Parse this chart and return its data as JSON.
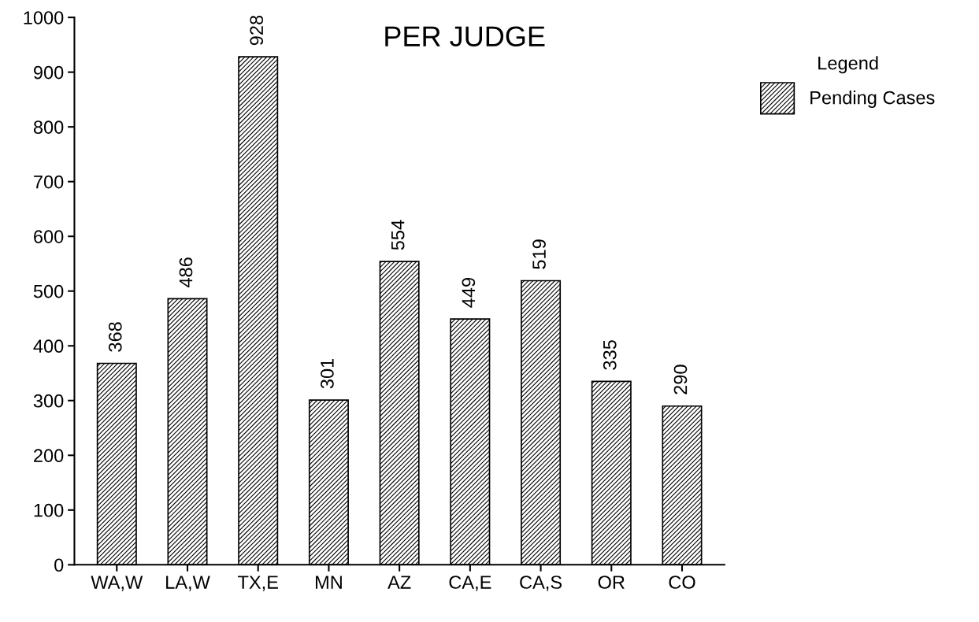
{
  "chart_data": {
    "type": "bar",
    "title": "PER JUDGE",
    "legend_title": "Legend",
    "categories": [
      "WA,W",
      "LA,W",
      "TX,E",
      "MN",
      "AZ",
      "CA,E",
      "CA,S",
      "OR",
      "CO"
    ],
    "series": [
      {
        "name": "Pending Cases",
        "color": "#000000",
        "values": [
          368,
          486,
          928,
          301,
          554,
          449,
          519,
          335,
          290
        ]
      }
    ],
    "ylim": [
      0,
      1000
    ],
    "yticks": [
      0,
      100,
      200,
      300,
      400,
      500,
      600,
      700,
      800,
      900,
      1000
    ],
    "data_labels": true,
    "grid": false,
    "legend": "top right"
  }
}
